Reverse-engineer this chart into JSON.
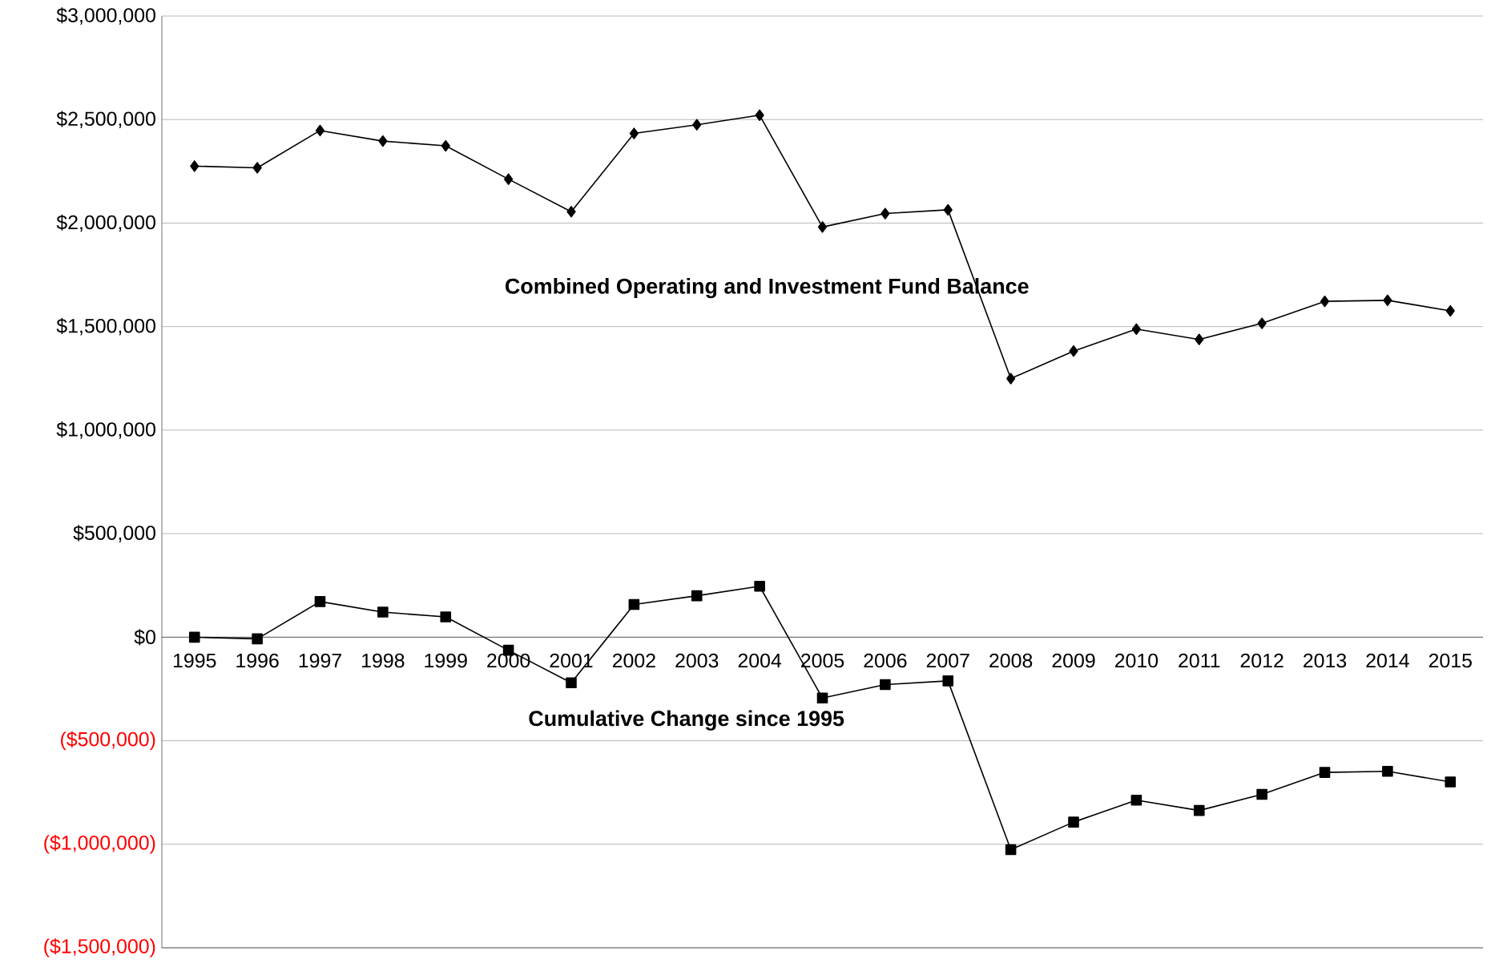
{
  "chart_data": {
    "type": "line",
    "categories": [
      "1995",
      "1996",
      "1997",
      "1998",
      "1999",
      "2000",
      "2001",
      "2002",
      "2003",
      "2004",
      "2005",
      "2006",
      "2007",
      "2008",
      "2009",
      "2010",
      "2011",
      "2012",
      "2013",
      "2014",
      "2015"
    ],
    "series": [
      {
        "name": "Combined Operating and Investment Fund Balance",
        "color": "#000000",
        "marker": "diamond",
        "values": [
          2275000,
          2267000,
          2447000,
          2396000,
          2373000,
          2212000,
          2055000,
          2433000,
          2475000,
          2521000,
          1981000,
          2046000,
          2064000,
          1249000,
          1382000,
          1488000,
          1438000,
          1516000,
          1622000,
          1627000,
          1576000
        ]
      },
      {
        "name": "Cumulative Change since 1995",
        "color": "#000000",
        "marker": "square",
        "values": [
          0,
          -8000,
          172000,
          121000,
          98000,
          -63000,
          -220000,
          158000,
          200000,
          246000,
          -294000,
          -229000,
          -211000,
          -1026000,
          -893000,
          -787000,
          -837000,
          -759000,
          -653000,
          -648000,
          -699000
        ]
      }
    ],
    "ylim": [
      -1500000,
      3000000
    ],
    "yticks": [
      {
        "value": -1500000,
        "label": "($1,500,000)"
      },
      {
        "value": -1000000,
        "label": "($1,000,000)"
      },
      {
        "value": -500000,
        "label": "($500,000)"
      },
      {
        "value": 0,
        "label": "$0"
      },
      {
        "value": 500000,
        "label": "$500,000"
      },
      {
        "value": 1000000,
        "label": "$1,000,000"
      },
      {
        "value": 1500000,
        "label": "$1,500,000"
      },
      {
        "value": 2000000,
        "label": "$2,000,000"
      },
      {
        "value": 2500000,
        "label": "$2,500,000"
      },
      {
        "value": 3000000,
        "label": "$3,000,000"
      }
    ],
    "grid": "y",
    "line_style": "solid"
  }
}
